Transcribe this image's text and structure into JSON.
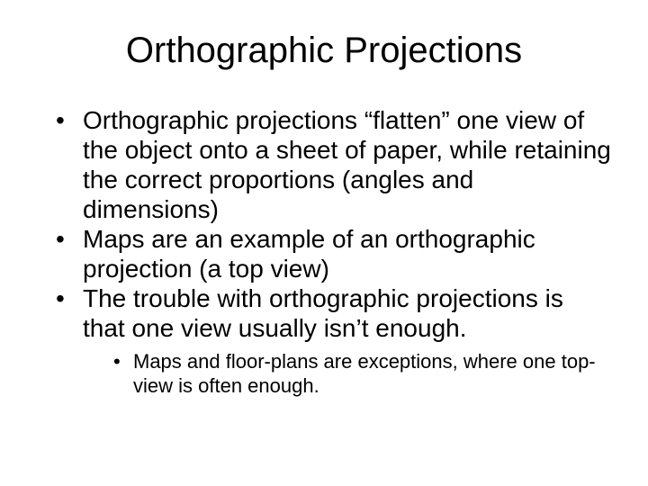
{
  "title": "Orthographic Projections",
  "bullets": [
    "Orthographic projections “flatten” one view of the object onto a sheet of paper, while retaining the correct proportions (angles and dimensions)",
    "Maps are an example of an orthographic projection (a top view)",
    "The trouble with orthographic projections is that one view usually isn’t enough."
  ],
  "sub_bullets": [
    "Maps and floor-plans are exceptions, where one top-view is often enough."
  ],
  "style": {
    "background_color": "#ffffff",
    "text_color": "#000000",
    "title_fontsize": 40,
    "body_fontsize": 28,
    "sub_fontsize": 22,
    "font_family": "Arial"
  }
}
